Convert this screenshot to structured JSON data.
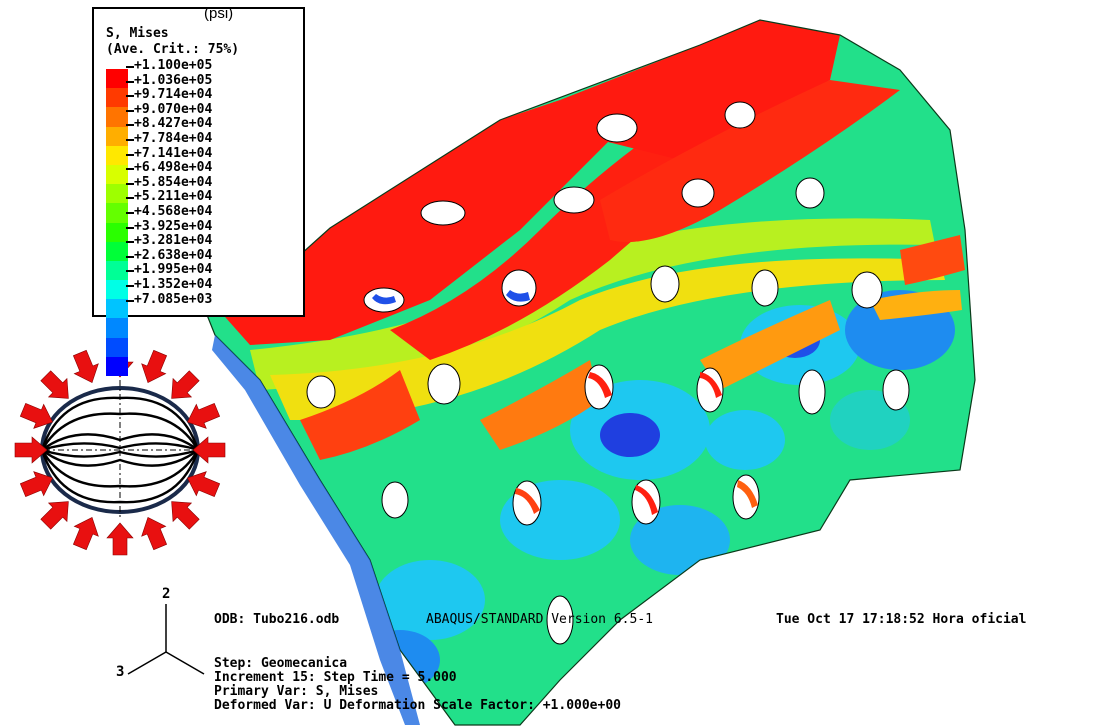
{
  "legend": {
    "unit": "(psi)",
    "title_line1": "S, Mises",
    "title_line2": "(Ave. Crit.: 75%)",
    "values": [
      "+1.100e+05",
      "+1.036e+05",
      "+9.714e+04",
      "+9.070e+04",
      "+8.427e+04",
      "+7.784e+04",
      "+7.141e+04",
      "+6.498e+04",
      "+5.854e+04",
      "+5.211e+04",
      "+4.568e+04",
      "+3.925e+04",
      "+3.281e+04",
      "+2.638e+04",
      "+1.995e+04",
      "+1.352e+04",
      "+7.085e+03"
    ],
    "colors": [
      "#ff0000",
      "#ff3a00",
      "#ff7400",
      "#ffae00",
      "#ffe800",
      "#d8ff00",
      "#9eff00",
      "#64ff00",
      "#2aff00",
      "#00ff38",
      "#00ff96",
      "#00ffe6",
      "#00c4ff",
      "#0088ff",
      "#004cff",
      "#0000ff"
    ]
  },
  "axes": {
    "axis_2": "2",
    "axis_3": "3"
  },
  "footer": {
    "odb": "ODB: Tubo216.odb",
    "version": "ABAQUS/STANDARD Version 6.5-1",
    "date": "Tue Oct 17 17:18:52 Hora oficial",
    "step": "Step: Geomecanica",
    "increment": "Increment    15: Step Time =    5.000",
    "primary": "Primary Var: S, Mises",
    "deformed": "Deformed Var: U   Deformation Scale Factor: +1.000e+00"
  }
}
